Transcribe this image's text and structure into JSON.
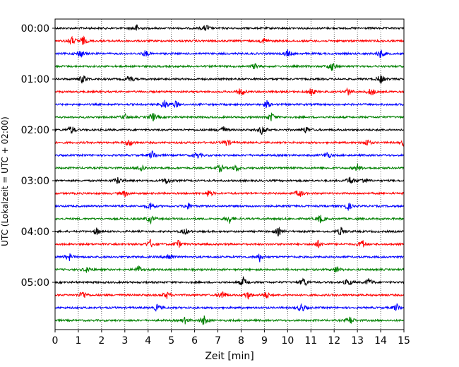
{
  "chart_data": {
    "type": "line",
    "title": "",
    "subtitle": "",
    "xlabel": "Zeit  [min]",
    "ylabel": "UTC (Lokalzeit = UTC + 02:00)",
    "xlim": [
      0,
      15
    ],
    "x_ticks": [
      0,
      1,
      2,
      3,
      4,
      5,
      6,
      7,
      8,
      9,
      10,
      11,
      12,
      13,
      14,
      15
    ],
    "x_tick_labels": [
      "0",
      "1",
      "2",
      "3",
      "4",
      "5",
      "6",
      "7",
      "8",
      "9",
      "10",
      "11",
      "12",
      "13",
      "14",
      "15"
    ],
    "y_tick_labels": [
      "00:00",
      "01:00",
      "02:00",
      "03:00",
      "04:00",
      "05:00"
    ],
    "y_tick_rows": [
      0,
      4,
      8,
      12,
      16,
      20
    ],
    "row_interval_minutes": 15,
    "grid": {
      "x": true,
      "style": "dotted"
    },
    "trace_colors": [
      "#000000",
      "#ff0000",
      "#0000ff",
      "#008000"
    ],
    "rows": [
      {
        "start": "00:00",
        "color": "#000000",
        "events": [
          3.5,
          6.5
        ]
      },
      {
        "start": "00:15",
        "color": "#ff0000",
        "events": [
          0.7,
          1.2,
          9.0
        ]
      },
      {
        "start": "00:30",
        "color": "#0000ff",
        "events": [
          1.1,
          3.9,
          10.0,
          14.0
        ]
      },
      {
        "start": "00:45",
        "color": "#008000",
        "events": [
          8.6,
          11.9
        ]
      },
      {
        "start": "01:00",
        "color": "#000000",
        "events": [
          1.2,
          3.2,
          14.0
        ]
      },
      {
        "start": "01:15",
        "color": "#ff0000",
        "events": [
          8.0,
          11.0,
          12.6,
          13.6
        ]
      },
      {
        "start": "01:30",
        "color": "#0000ff",
        "events": [
          4.7,
          5.2,
          9.1
        ]
      },
      {
        "start": "01:45",
        "color": "#008000",
        "events": [
          3.0,
          4.2,
          9.3
        ]
      },
      {
        "start": "02:00",
        "color": "#000000",
        "events": [
          0.7,
          7.2,
          8.9,
          10.8
        ]
      },
      {
        "start": "02:15",
        "color": "#ff0000",
        "events": [
          3.2,
          7.4,
          13.4,
          15.0
        ]
      },
      {
        "start": "02:30",
        "color": "#0000ff",
        "events": [
          4.2,
          6.1,
          11.7
        ]
      },
      {
        "start": "02:45",
        "color": "#008000",
        "events": [
          3.7,
          7.1,
          7.8,
          13.0
        ]
      },
      {
        "start": "03:00",
        "color": "#000000",
        "events": [
          2.7,
          4.8,
          12.7,
          13.3
        ]
      },
      {
        "start": "03:15",
        "color": "#ff0000",
        "events": [
          3.0,
          6.6,
          10.5
        ]
      },
      {
        "start": "03:30",
        "color": "#0000ff",
        "events": [
          4.1,
          5.7,
          12.6
        ]
      },
      {
        "start": "03:45",
        "color": "#008000",
        "events": [
          4.1,
          7.5,
          11.4
        ]
      },
      {
        "start": "04:00",
        "color": "#000000",
        "events": [
          1.8,
          5.6,
          9.6,
          12.3
        ]
      },
      {
        "start": "04:15",
        "color": "#ff0000",
        "events": [
          4.1,
          5.3,
          11.3,
          13.2
        ]
      },
      {
        "start": "04:30",
        "color": "#0000ff",
        "events": [
          0.6,
          4.9,
          8.8
        ]
      },
      {
        "start": "04:45",
        "color": "#008000",
        "events": [
          1.4,
          3.6,
          12.1
        ]
      },
      {
        "start": "05:00",
        "color": "#000000",
        "events": [
          8.1,
          10.7,
          12.6,
          13.5
        ]
      },
      {
        "start": "05:15",
        "color": "#ff0000",
        "events": [
          1.2,
          4.8,
          7.2,
          8.3,
          9.1
        ]
      },
      {
        "start": "05:30",
        "color": "#0000ff",
        "events": [
          4.4,
          10.6,
          14.7
        ]
      },
      {
        "start": "05:45",
        "color": "#008000",
        "events": [
          5.6,
          6.4,
          12.7
        ]
      }
    ]
  }
}
